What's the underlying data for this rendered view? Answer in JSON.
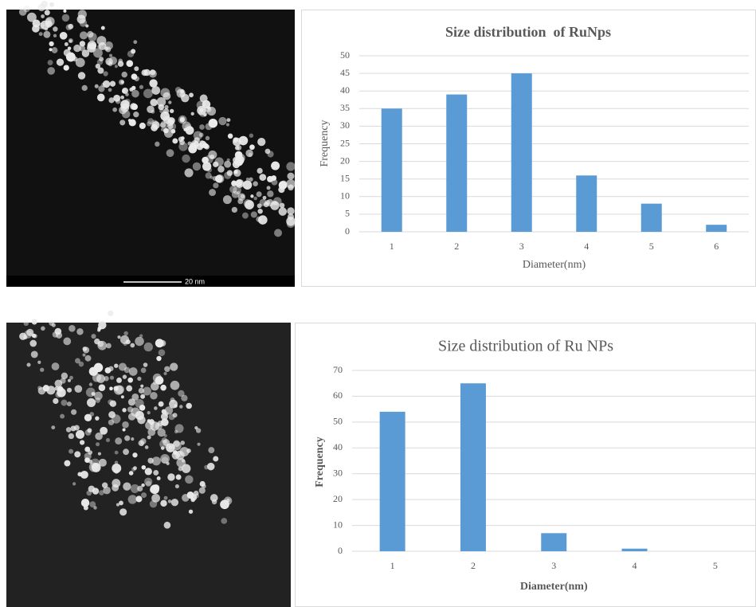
{
  "chart_data": [
    {
      "type": "bar",
      "title": "Size distribution  of RuNps",
      "x_label": "Diameter(nm)",
      "y_label": "Frequency",
      "categories": [
        "1",
        "2",
        "3",
        "4",
        "5",
        "6"
      ],
      "values": [
        35,
        39,
        45,
        16,
        8,
        2
      ],
      "color": "#5b9bd5",
      "ylim": [
        0,
        50
      ],
      "yticks": [
        0,
        5,
        10,
        15,
        20,
        25,
        30,
        35,
        40,
        45,
        50
      ],
      "grid": true
    },
    {
      "type": "bar",
      "title": "Size distribution of Ru NPs",
      "x_label": "Diameter(nm)",
      "y_label": "Frequency",
      "categories": [
        "1",
        "2",
        "3",
        "4",
        "5"
      ],
      "values": [
        54,
        65,
        7,
        1,
        0
      ],
      "color": "#5b9bd5",
      "ylim": [
        0,
        70
      ],
      "yticks": [
        0,
        10,
        20,
        30,
        40,
        50,
        60,
        70
      ],
      "grid": true
    }
  ],
  "images": [
    {
      "scale_label": "20 nm"
    }
  ]
}
